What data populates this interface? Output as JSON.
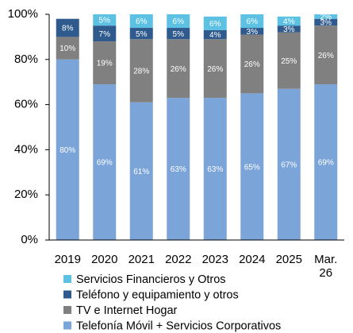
{
  "chart_data": {
    "type": "stacked_bar",
    "categories": [
      "2019",
      "2020",
      "2021",
      "2022",
      "2023",
      "2024",
      "2025",
      "Mar. 26"
    ],
    "series": [
      {
        "name": "Telefonía Móvil + Servicios Corporativos",
        "color": "#7ba4d9",
        "values": [
          80,
          69,
          61,
          63,
          63,
          65,
          67,
          69
        ],
        "value_labels": [
          "80%",
          "69%",
          "61%",
          "63%",
          "63%",
          "65%",
          "67%",
          "69%"
        ]
      },
      {
        "name": "TV e Internet Hogar",
        "color": "#808080",
        "values": [
          10,
          19,
          28,
          26,
          26,
          26,
          25,
          26
        ],
        "value_labels": [
          "10%",
          "19%",
          "28%",
          "26%",
          "26%",
          "26%",
          "25%",
          "26%"
        ]
      },
      {
        "name": "Teléfono y equipamiento y otros",
        "color": "#2e5a8e",
        "values": [
          8,
          7,
          5,
          5,
          4,
          3,
          3,
          3
        ],
        "value_labels": [
          "8%",
          "7%",
          "5%",
          "5%",
          "4%",
          "3%",
          "3%",
          "3%"
        ]
      },
      {
        "name": "Servicios Financieros y Otros",
        "color": "#5cc1e3",
        "values": [
          null,
          5,
          6,
          6,
          6,
          6,
          4,
          2
        ],
        "value_labels": [
          null,
          "5%",
          "6%",
          "6%",
          "6%",
          "6%",
          "4%",
          "2%"
        ]
      }
    ],
    "ylim": [
      0,
      100
    ],
    "yticks": [
      {
        "value": 0,
        "label": "0%"
      },
      {
        "value": 20,
        "label": "20%"
      },
      {
        "value": 40,
        "label": "40%"
      },
      {
        "value": 60,
        "label": "60%"
      },
      {
        "value": 80,
        "label": "80%"
      },
      {
        "value": 100,
        "label": "100%"
      }
    ],
    "legend": "bottom"
  }
}
